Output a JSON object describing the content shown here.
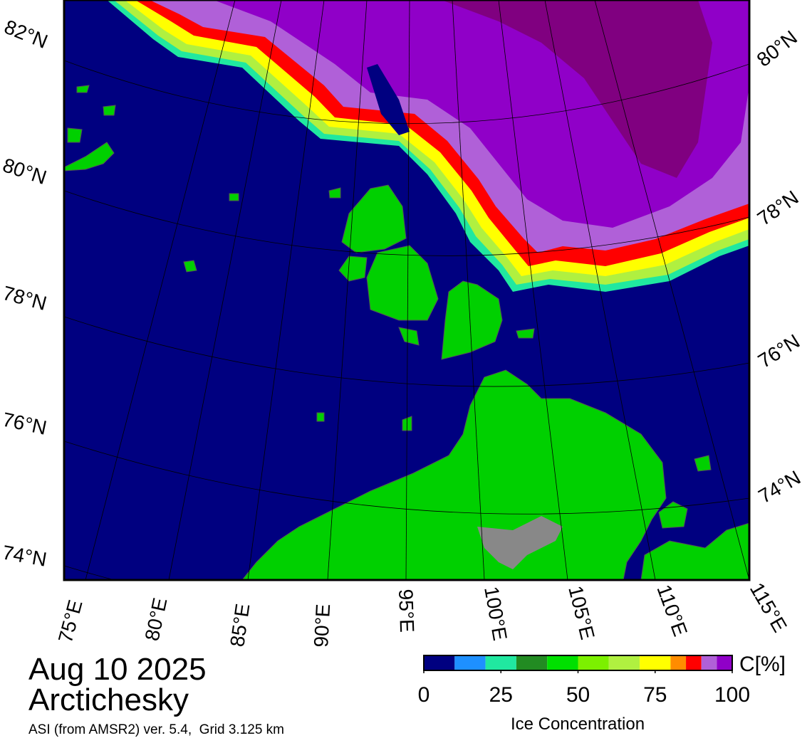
{
  "map": {
    "title": "Aug 10 2025",
    "region": "Arctichesky",
    "source": "ASI (from AMSR2) ver. 5.4,  Grid 3.125 km",
    "lat_labels_left": [
      "82°N",
      "80°N",
      "78°N",
      "76°N",
      "74°N"
    ],
    "lat_labels_right": [
      "80°N",
      "78°N",
      "76°N",
      "74°N"
    ],
    "lon_labels": [
      "75°E",
      "80°E",
      "85°E",
      "90°E",
      "95°E",
      "100°E",
      "105°E",
      "110°E",
      "115°E"
    ]
  },
  "colorbar": {
    "label": "C[%]",
    "title": "Ice Concentration",
    "range": [
      0,
      100
    ],
    "bounds": [
      0,
      10,
      20,
      30,
      40,
      50,
      60,
      70,
      80,
      85,
      90,
      95,
      100
    ],
    "colors": [
      "#000080",
      "#1e90ff",
      "#20e8a0",
      "#228b22",
      "#00e000",
      "#7cf000",
      "#b0f040",
      "#ffff00",
      "#ff8c00",
      "#ff0000",
      "#b060d8",
      "#9000c8"
    ],
    "ticks": [
      0,
      25,
      50,
      75,
      100
    ]
  }
}
